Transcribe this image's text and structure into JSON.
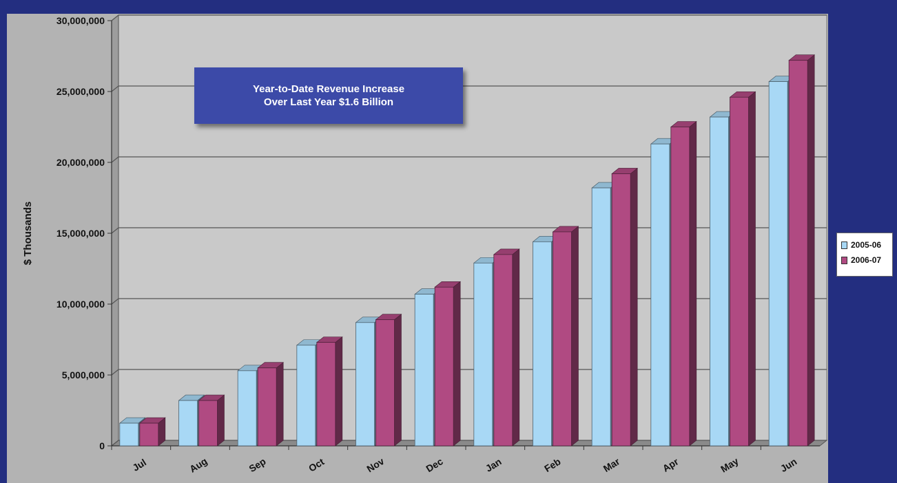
{
  "annotation": {
    "line1": "Year-to-Date Revenue Increase",
    "line2": "Over Last Year $1.6 Billion"
  },
  "colors": {
    "background": "#232e80",
    "plot_area": "#c9c9c9",
    "series_2005_06": "#a8d8f5",
    "series_2006_07": "#b04a82"
  },
  "chart_data": {
    "type": "bar",
    "title": "",
    "xlabel": "",
    "ylabel": "$ Thousands",
    "ylim": [
      0,
      30000000
    ],
    "yticks": [
      "0",
      "5,000,000",
      "10,000,000",
      "15,000,000",
      "20,000,000",
      "25,000,000",
      "30,000,000"
    ],
    "categories": [
      "Jul",
      "Aug",
      "Sep",
      "Oct",
      "Nov",
      "Dec",
      "Jan",
      "Feb",
      "Mar",
      "Apr",
      "May",
      "Jun"
    ],
    "series": [
      {
        "name": "2005-06",
        "values": [
          1600000,
          3200000,
          5300000,
          7100000,
          8700000,
          10700000,
          12900000,
          14400000,
          18200000,
          21300000,
          23200000,
          25700000
        ]
      },
      {
        "name": "2006-07",
        "values": [
          1600000,
          3200000,
          5500000,
          7300000,
          8900000,
          11200000,
          13500000,
          15100000,
          19200000,
          22500000,
          24600000,
          27200000
        ]
      }
    ],
    "grid": true,
    "legend_position": "right"
  }
}
